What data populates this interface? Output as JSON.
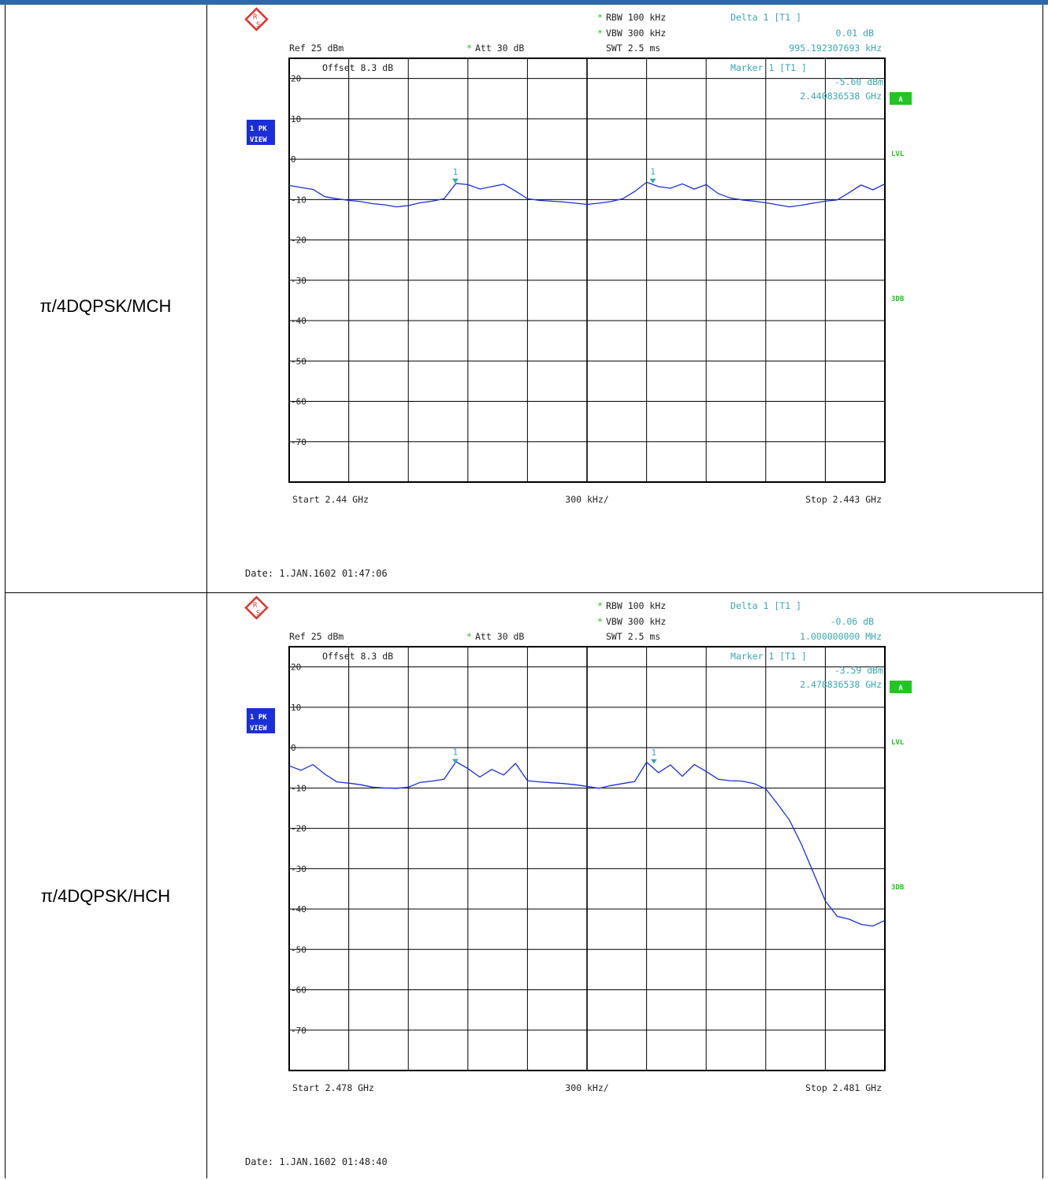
{
  "colors": {
    "header_bar": "#2f67a8",
    "trace": "#1a2fd6",
    "annotation": "#3aa8b0",
    "status_green": "#22c522",
    "view_badge": "#1a2fd6"
  },
  "icons": {
    "logo": "rohde-schwarz-logo-icon",
    "marker": "marker-triangle-icon"
  },
  "rows": [
    {
      "label": "π/4DQPSK/MCH"
    },
    {
      "label": "π/4DQPSK/HCH"
    }
  ],
  "chart_data": [
    {
      "type": "line",
      "title": "",
      "header": {
        "rbw": "RBW  100 kHz",
        "vbw": "VBW  300 kHz",
        "swt": "SWT  2.5 ms",
        "ref": "Ref   25 dBm",
        "att": "Att   30 dB",
        "offset": "Offset    8.3  dB",
        "delta_label": "Delta 1 [T1 ]",
        "delta_value": "0.01 dB",
        "delta_freq": "995.192307693 kHz",
        "marker_label": "Marker 1 [T1 ]",
        "marker_value": "-5.60 dBm",
        "marker_freq": "2.440836538 GHz",
        "start": "Start  2.44 GHz",
        "span_div": "300 kHz/",
        "stop": "Stop  2.443 GHz",
        "date": "Date: 1.JAN.1602  01:47:06"
      },
      "side_labels": {
        "trace_mode": "1 PK",
        "view": "VIEW",
        "a": "A",
        "lvl": "LVL",
        "db3": "3DB"
      },
      "y_ticks": [
        "20",
        "10",
        "0",
        "-10",
        "-20",
        "-30",
        "-40",
        "-50",
        "-60",
        "-70"
      ],
      "ylim": [
        -80,
        25
      ],
      "xlim": [
        2.44,
        2.443
      ],
      "xunit": "GHz",
      "yunit": "dBm",
      "marker_ids": [
        "1",
        "1"
      ],
      "markers": [
        {
          "x": 2.440836538,
          "y": -5.6
        },
        {
          "x": 2.44183173,
          "y": -5.59
        }
      ],
      "series": [
        {
          "x": [
            2.44,
            2.44006,
            2.44012,
            2.44018,
            2.44024,
            2.4403,
            2.44036,
            2.44042,
            2.44048,
            2.44054,
            2.4406,
            2.44066,
            2.44072,
            2.44078,
            2.44084,
            2.4409,
            2.44096,
            2.44102,
            2.44108,
            2.44114,
            2.4412,
            2.44126,
            2.44132,
            2.44138,
            2.44144,
            2.4415,
            2.44156,
            2.44162,
            2.44168,
            2.44174,
            2.4418,
            2.44186,
            2.44192,
            2.44198,
            2.44204,
            2.4421,
            2.44216,
            2.44222,
            2.44228,
            2.44234,
            2.4424,
            2.44246,
            2.44252,
            2.44258,
            2.44264,
            2.4427,
            2.44276,
            2.44282,
            2.44288,
            2.44294,
            2.443
          ],
          "y": [
            -6.5,
            -7,
            -7.5,
            -9.3,
            -9.8,
            -10.2,
            -10.5,
            -11,
            -11.3,
            -11.8,
            -11.5,
            -10.8,
            -10.4,
            -9.8,
            -6,
            -6.3,
            -7.4,
            -6.8,
            -6.2,
            -7.9,
            -9.8,
            -10.2,
            -10.4,
            -10.6,
            -10.9,
            -11.2,
            -10.9,
            -10.5,
            -9.8,
            -8,
            -5.7,
            -6.8,
            -7.2,
            -6.1,
            -7.4,
            -6.3,
            -8.5,
            -9.6,
            -10.1,
            -10.4,
            -10.8,
            -11.3,
            -11.8,
            -11.4,
            -10.9,
            -10.4,
            -10.1,
            -8.3,
            -6.4,
            -7.6,
            -6.1
          ]
        }
      ]
    },
    {
      "type": "line",
      "title": "",
      "header": {
        "rbw": "RBW  100 kHz",
        "vbw": "VBW  300 kHz",
        "swt": "SWT  2.5 ms",
        "ref": "Ref   25 dBm",
        "att": "Att   30 dB",
        "offset": "Offset    8.3  dB",
        "delta_label": "Delta 1 [T1 ]",
        "delta_value": "-0.06 dB",
        "delta_freq": "1.000000000 MHz",
        "marker_label": "Marker 1 [T1 ]",
        "marker_value": "-3.59 dBm",
        "marker_freq": "2.478836538 GHz",
        "start": "Start  2.478 GHz",
        "span_div": "300 kHz/",
        "stop": "Stop  2.481 GHz",
        "date": "Date: 1.JAN.1602  01:48:40"
      },
      "side_labels": {
        "trace_mode": "1 PK",
        "view": "VIEW",
        "a": "A",
        "lvl": "LVL",
        "db3": "3DB"
      },
      "y_ticks": [
        "20",
        "10",
        "0",
        "-10",
        "-20",
        "-30",
        "-40",
        "-50",
        "-60",
        "-70"
      ],
      "ylim": [
        -80,
        25
      ],
      "xlim": [
        2.478,
        2.481
      ],
      "xunit": "GHz",
      "yunit": "dBm",
      "marker_ids": [
        "1",
        "1"
      ],
      "markers": [
        {
          "x": 2.478836538,
          "y": -3.59
        },
        {
          "x": 2.479836538,
          "y": -3.65
        }
      ],
      "series": [
        {
          "x": [
            2.478,
            2.47806,
            2.47812,
            2.47818,
            2.47824,
            2.4783,
            2.47836,
            2.47842,
            2.47848,
            2.47854,
            2.4786,
            2.47866,
            2.47872,
            2.47878,
            2.47884,
            2.4789,
            2.47896,
            2.47902,
            2.47908,
            2.47914,
            2.4792,
            2.47926,
            2.47932,
            2.47938,
            2.47944,
            2.4795,
            2.47956,
            2.47962,
            2.47968,
            2.47974,
            2.4798,
            2.47986,
            2.47992,
            2.47998,
            2.48004,
            2.4801,
            2.48016,
            2.48022,
            2.48028,
            2.48034,
            2.4804,
            2.48046,
            2.48052,
            2.48058,
            2.48064,
            2.4807,
            2.48076,
            2.48082,
            2.48088,
            2.48094,
            2.481
          ],
          "y": [
            -4.5,
            -5.6,
            -4.2,
            -6.6,
            -8.5,
            -8.8,
            -9.2,
            -9.8,
            -10,
            -10.1,
            -9.8,
            -8.6,
            -8.3,
            -7.8,
            -3.5,
            -5.2,
            -7.3,
            -5.4,
            -6.8,
            -3.9,
            -8.2,
            -8.5,
            -8.7,
            -8.9,
            -9.2,
            -9.6,
            -10.1,
            -9.4,
            -8.9,
            -8.4,
            -3.6,
            -6.2,
            -4.3,
            -7.1,
            -4.2,
            -5.9,
            -7.8,
            -8.2,
            -8.3,
            -8.9,
            -10.2,
            -14,
            -18,
            -24,
            -31,
            -38,
            -41.8,
            -42.5,
            -43.8,
            -44.2,
            -42.8
          ]
        }
      ]
    }
  ]
}
